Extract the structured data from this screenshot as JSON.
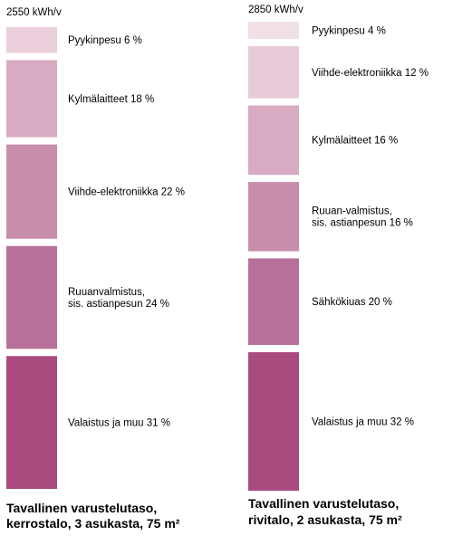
{
  "chart_data": [
    {
      "type": "bar",
      "total_label": "2550 kWh/v",
      "caption": [
        "Tavallinen varustelutaso,",
        "kerrostalo, 3 asukasta, 75 m²"
      ],
      "segments": [
        {
          "lines": [
            "Pyykinpesu 6 %"
          ],
          "value": 6,
          "color": "#eccfdc"
        },
        {
          "lines": [
            "Kylmälaitteet 18 %"
          ],
          "value": 18,
          "color": "#d8abc2"
        },
        {
          "lines": [
            "Viihde-elektroniikka 22 %"
          ],
          "value": 22,
          "color": "#c88eac"
        },
        {
          "lines": [
            "Ruuanvalmistus,",
            "sis. astianpesun  24 %"
          ],
          "value": 24,
          "color": "#b7719a"
        },
        {
          "lines": [
            "Valaistus ja muu 31 %"
          ],
          "value": 31,
          "color": "#a94b7e"
        }
      ]
    },
    {
      "type": "bar",
      "total_label": "2850 kWh/v",
      "caption": [
        "Tavallinen varustelutaso,",
        "rivitalo,  2 asukasta, 75 m²"
      ],
      "segments": [
        {
          "lines": [
            "Pyykinpesu 4 %"
          ],
          "value": 4,
          "color": "#f2e0e9"
        },
        {
          "lines": [
            "Viihde-elektroniikka 12 %"
          ],
          "value": 12,
          "color": "#e8cbd9"
        },
        {
          "lines": [
            "Kylmälaitteet 16 %"
          ],
          "value": 16,
          "color": "#d8abc2"
        },
        {
          "lines": [
            "Ruuan-valmistus,",
            "sis. astianpesun  16 %"
          ],
          "value": 16,
          "color": "#c88eac"
        },
        {
          "lines": [
            "Sähkökiuas 20 %"
          ],
          "value": 20,
          "color": "#b7719a"
        },
        {
          "lines": [
            "Valaistus ja muu 32 %"
          ],
          "value": 32,
          "color": "#a94b7e"
        }
      ]
    }
  ]
}
